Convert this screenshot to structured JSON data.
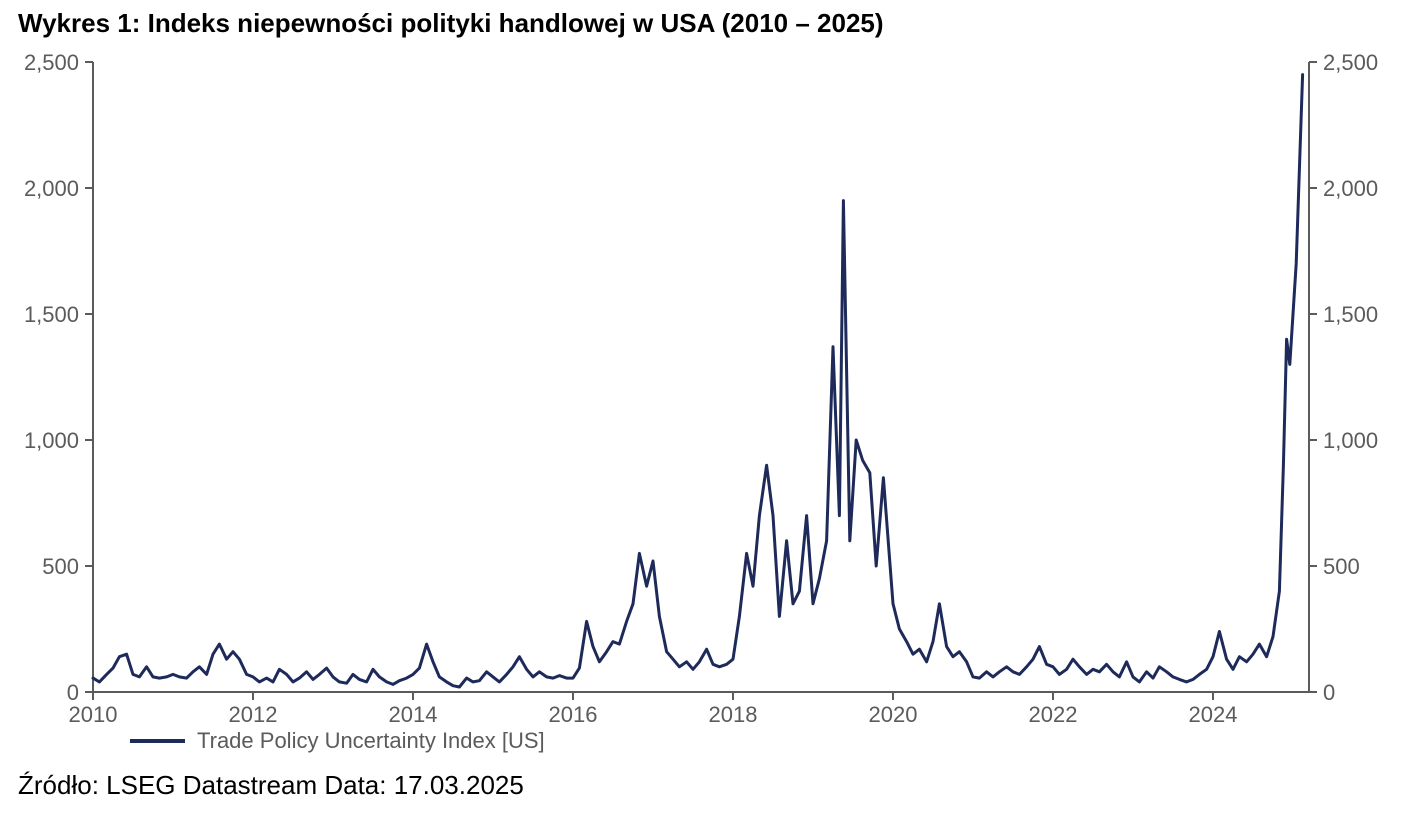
{
  "title": "Wykres 1: Indeks niepewności polityki handlowej w USA (2010 – 2025)",
  "source": "Źródło: LSEG Datastream Data: 17.03.2025",
  "chart": {
    "type": "line",
    "legend_label": "Trade Policy Uncertainty Index [US]",
    "line_color": "#1d2a5a",
    "line_width": 3,
    "background_color": "#ffffff",
    "axis_color": "#5b5b5b",
    "tick_label_color": "#5b5b5b",
    "tick_label_fontsize": 22,
    "title_fontsize": 26,
    "title_fontweight": "bold",
    "x": {
      "min": 2010,
      "max": 2025.2,
      "ticks": [
        2010,
        2012,
        2014,
        2016,
        2018,
        2020,
        2022,
        2024
      ],
      "tick_labels": [
        "2010",
        "2012",
        "2014",
        "2016",
        "2018",
        "2020",
        "2022",
        "2024"
      ]
    },
    "y_left": {
      "min": 0,
      "max": 2500,
      "ticks": [
        0,
        500,
        1000,
        1500,
        2000,
        2500
      ],
      "tick_labels": [
        "0",
        "500",
        "1,000",
        "1,500",
        "2,000",
        "2,500"
      ]
    },
    "y_right": {
      "min": 0,
      "max": 2500,
      "ticks": [
        0,
        500,
        1000,
        1500,
        2000,
        2500
      ],
      "tick_labels": [
        "0",
        "500",
        "1,000",
        "1,500",
        "2,000",
        "2,500"
      ]
    },
    "series": [
      {
        "x": 2010.0,
        "y": 55
      },
      {
        "x": 2010.08,
        "y": 40
      },
      {
        "x": 2010.17,
        "y": 70
      },
      {
        "x": 2010.25,
        "y": 95
      },
      {
        "x": 2010.33,
        "y": 140
      },
      {
        "x": 2010.42,
        "y": 150
      },
      {
        "x": 2010.5,
        "y": 70
      },
      {
        "x": 2010.58,
        "y": 60
      },
      {
        "x": 2010.67,
        "y": 100
      },
      {
        "x": 2010.75,
        "y": 60
      },
      {
        "x": 2010.83,
        "y": 55
      },
      {
        "x": 2010.92,
        "y": 60
      },
      {
        "x": 2011.0,
        "y": 70
      },
      {
        "x": 2011.08,
        "y": 60
      },
      {
        "x": 2011.17,
        "y": 55
      },
      {
        "x": 2011.25,
        "y": 80
      },
      {
        "x": 2011.33,
        "y": 100
      },
      {
        "x": 2011.42,
        "y": 70
      },
      {
        "x": 2011.5,
        "y": 150
      },
      {
        "x": 2011.58,
        "y": 190
      },
      {
        "x": 2011.67,
        "y": 130
      },
      {
        "x": 2011.75,
        "y": 160
      },
      {
        "x": 2011.83,
        "y": 130
      },
      {
        "x": 2011.92,
        "y": 70
      },
      {
        "x": 2012.0,
        "y": 60
      },
      {
        "x": 2012.08,
        "y": 40
      },
      {
        "x": 2012.17,
        "y": 55
      },
      {
        "x": 2012.25,
        "y": 40
      },
      {
        "x": 2012.33,
        "y": 90
      },
      {
        "x": 2012.42,
        "y": 70
      },
      {
        "x": 2012.5,
        "y": 40
      },
      {
        "x": 2012.58,
        "y": 55
      },
      {
        "x": 2012.67,
        "y": 80
      },
      {
        "x": 2012.75,
        "y": 50
      },
      {
        "x": 2012.83,
        "y": 70
      },
      {
        "x": 2012.92,
        "y": 95
      },
      {
        "x": 2013.0,
        "y": 60
      },
      {
        "x": 2013.08,
        "y": 40
      },
      {
        "x": 2013.17,
        "y": 35
      },
      {
        "x": 2013.25,
        "y": 70
      },
      {
        "x": 2013.33,
        "y": 50
      },
      {
        "x": 2013.42,
        "y": 40
      },
      {
        "x": 2013.5,
        "y": 90
      },
      {
        "x": 2013.58,
        "y": 60
      },
      {
        "x": 2013.67,
        "y": 40
      },
      {
        "x": 2013.75,
        "y": 30
      },
      {
        "x": 2013.83,
        "y": 45
      },
      {
        "x": 2013.92,
        "y": 55
      },
      {
        "x": 2014.0,
        "y": 70
      },
      {
        "x": 2014.08,
        "y": 95
      },
      {
        "x": 2014.17,
        "y": 190
      },
      {
        "x": 2014.25,
        "y": 120
      },
      {
        "x": 2014.33,
        "y": 60
      },
      {
        "x": 2014.42,
        "y": 40
      },
      {
        "x": 2014.5,
        "y": 25
      },
      {
        "x": 2014.58,
        "y": 20
      },
      {
        "x": 2014.67,
        "y": 55
      },
      {
        "x": 2014.75,
        "y": 40
      },
      {
        "x": 2014.83,
        "y": 45
      },
      {
        "x": 2014.92,
        "y": 80
      },
      {
        "x": 2015.0,
        "y": 60
      },
      {
        "x": 2015.08,
        "y": 40
      },
      {
        "x": 2015.17,
        "y": 70
      },
      {
        "x": 2015.25,
        "y": 100
      },
      {
        "x": 2015.33,
        "y": 140
      },
      {
        "x": 2015.42,
        "y": 90
      },
      {
        "x": 2015.5,
        "y": 60
      },
      {
        "x": 2015.58,
        "y": 80
      },
      {
        "x": 2015.67,
        "y": 60
      },
      {
        "x": 2015.75,
        "y": 55
      },
      {
        "x": 2015.83,
        "y": 65
      },
      {
        "x": 2015.92,
        "y": 55
      },
      {
        "x": 2016.0,
        "y": 55
      },
      {
        "x": 2016.08,
        "y": 95
      },
      {
        "x": 2016.17,
        "y": 280
      },
      {
        "x": 2016.25,
        "y": 180
      },
      {
        "x": 2016.33,
        "y": 120
      },
      {
        "x": 2016.42,
        "y": 160
      },
      {
        "x": 2016.5,
        "y": 200
      },
      {
        "x": 2016.58,
        "y": 190
      },
      {
        "x": 2016.67,
        "y": 280
      },
      {
        "x": 2016.75,
        "y": 350
      },
      {
        "x": 2016.83,
        "y": 550
      },
      {
        "x": 2016.92,
        "y": 420
      },
      {
        "x": 2017.0,
        "y": 520
      },
      {
        "x": 2017.08,
        "y": 300
      },
      {
        "x": 2017.17,
        "y": 160
      },
      {
        "x": 2017.25,
        "y": 130
      },
      {
        "x": 2017.33,
        "y": 100
      },
      {
        "x": 2017.42,
        "y": 120
      },
      {
        "x": 2017.5,
        "y": 90
      },
      {
        "x": 2017.58,
        "y": 120
      },
      {
        "x": 2017.67,
        "y": 170
      },
      {
        "x": 2017.75,
        "y": 110
      },
      {
        "x": 2017.83,
        "y": 100
      },
      {
        "x": 2017.92,
        "y": 110
      },
      {
        "x": 2018.0,
        "y": 130
      },
      {
        "x": 2018.08,
        "y": 300
      },
      {
        "x": 2018.17,
        "y": 550
      },
      {
        "x": 2018.25,
        "y": 420
      },
      {
        "x": 2018.33,
        "y": 700
      },
      {
        "x": 2018.42,
        "y": 900
      },
      {
        "x": 2018.5,
        "y": 700
      },
      {
        "x": 2018.58,
        "y": 300
      },
      {
        "x": 2018.67,
        "y": 600
      },
      {
        "x": 2018.75,
        "y": 350
      },
      {
        "x": 2018.83,
        "y": 400
      },
      {
        "x": 2018.92,
        "y": 700
      },
      {
        "x": 2019.0,
        "y": 350
      },
      {
        "x": 2019.08,
        "y": 450
      },
      {
        "x": 2019.17,
        "y": 600
      },
      {
        "x": 2019.25,
        "y": 1370
      },
      {
        "x": 2019.33,
        "y": 700
      },
      {
        "x": 2019.38,
        "y": 1950
      },
      {
        "x": 2019.46,
        "y": 600
      },
      {
        "x": 2019.54,
        "y": 1000
      },
      {
        "x": 2019.62,
        "y": 920
      },
      {
        "x": 2019.71,
        "y": 870
      },
      {
        "x": 2019.79,
        "y": 500
      },
      {
        "x": 2019.88,
        "y": 850
      },
      {
        "x": 2020.0,
        "y": 350
      },
      {
        "x": 2020.08,
        "y": 250
      },
      {
        "x": 2020.17,
        "y": 200
      },
      {
        "x": 2020.25,
        "y": 150
      },
      {
        "x": 2020.33,
        "y": 170
      },
      {
        "x": 2020.42,
        "y": 120
      },
      {
        "x": 2020.5,
        "y": 200
      },
      {
        "x": 2020.58,
        "y": 350
      },
      {
        "x": 2020.67,
        "y": 180
      },
      {
        "x": 2020.75,
        "y": 140
      },
      {
        "x": 2020.83,
        "y": 160
      },
      {
        "x": 2020.92,
        "y": 120
      },
      {
        "x": 2021.0,
        "y": 60
      },
      {
        "x": 2021.08,
        "y": 55
      },
      {
        "x": 2021.17,
        "y": 80
      },
      {
        "x": 2021.25,
        "y": 60
      },
      {
        "x": 2021.33,
        "y": 80
      },
      {
        "x": 2021.42,
        "y": 100
      },
      {
        "x": 2021.5,
        "y": 80
      },
      {
        "x": 2021.58,
        "y": 70
      },
      {
        "x": 2021.67,
        "y": 100
      },
      {
        "x": 2021.75,
        "y": 130
      },
      {
        "x": 2021.83,
        "y": 180
      },
      {
        "x": 2021.92,
        "y": 110
      },
      {
        "x": 2022.0,
        "y": 100
      },
      {
        "x": 2022.08,
        "y": 70
      },
      {
        "x": 2022.17,
        "y": 90
      },
      {
        "x": 2022.25,
        "y": 130
      },
      {
        "x": 2022.33,
        "y": 100
      },
      {
        "x": 2022.42,
        "y": 70
      },
      {
        "x": 2022.5,
        "y": 90
      },
      {
        "x": 2022.58,
        "y": 80
      },
      {
        "x": 2022.67,
        "y": 110
      },
      {
        "x": 2022.75,
        "y": 80
      },
      {
        "x": 2022.83,
        "y": 60
      },
      {
        "x": 2022.92,
        "y": 120
      },
      {
        "x": 2023.0,
        "y": 60
      },
      {
        "x": 2023.08,
        "y": 40
      },
      {
        "x": 2023.17,
        "y": 80
      },
      {
        "x": 2023.25,
        "y": 55
      },
      {
        "x": 2023.33,
        "y": 100
      },
      {
        "x": 2023.42,
        "y": 80
      },
      {
        "x": 2023.5,
        "y": 60
      },
      {
        "x": 2023.58,
        "y": 50
      },
      {
        "x": 2023.67,
        "y": 40
      },
      {
        "x": 2023.75,
        "y": 50
      },
      {
        "x": 2023.83,
        "y": 70
      },
      {
        "x": 2023.92,
        "y": 90
      },
      {
        "x": 2024.0,
        "y": 140
      },
      {
        "x": 2024.08,
        "y": 240
      },
      {
        "x": 2024.17,
        "y": 130
      },
      {
        "x": 2024.25,
        "y": 90
      },
      {
        "x": 2024.33,
        "y": 140
      },
      {
        "x": 2024.42,
        "y": 120
      },
      {
        "x": 2024.5,
        "y": 150
      },
      {
        "x": 2024.58,
        "y": 190
      },
      {
        "x": 2024.67,
        "y": 140
      },
      {
        "x": 2024.75,
        "y": 220
      },
      {
        "x": 2024.83,
        "y": 400
      },
      {
        "x": 2024.88,
        "y": 900
      },
      {
        "x": 2024.92,
        "y": 1400
      },
      {
        "x": 2024.96,
        "y": 1300
      },
      {
        "x": 2025.04,
        "y": 1700
      },
      {
        "x": 2025.12,
        "y": 2450
      }
    ]
  }
}
